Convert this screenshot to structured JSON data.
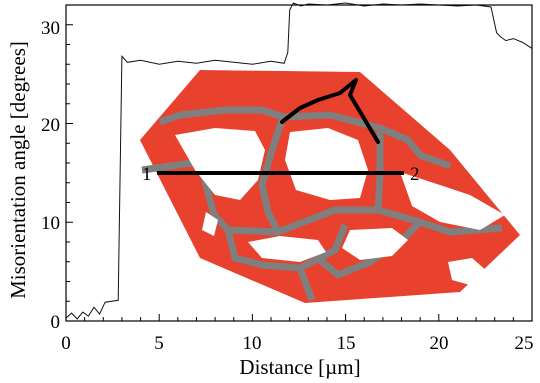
{
  "chart_data": {
    "type": "line",
    "xlabel": "Distance [µm]",
    "ylabel": "Misorientation angle [degrees]",
    "xlim": [
      0,
      25
    ],
    "ylim": [
      0,
      32
    ],
    "xticks": [
      "0",
      "5",
      "10",
      "15",
      "20",
      "25"
    ],
    "yticks": [
      "0",
      "10",
      "20",
      "30"
    ],
    "grid": false,
    "series": [
      {
        "x": [
          0,
          0.3,
          0.6,
          0.9,
          1.2,
          1.5,
          1.8,
          2.1,
          2.8,
          3.0,
          3.3,
          4,
          5,
          6,
          7,
          8,
          9,
          10,
          11,
          11.7,
          11.9,
          12.0,
          12.2,
          12.6,
          13,
          14,
          15,
          16,
          17,
          18,
          19,
          20,
          21,
          22,
          22.8,
          23.1,
          23.3,
          23.6,
          24,
          24.5,
          25
        ],
        "y": [
          0.3,
          0.8,
          0.2,
          0.9,
          0.5,
          1.4,
          0.7,
          1.9,
          2.1,
          26.8,
          26.2,
          26.4,
          26.0,
          26.3,
          26.1,
          26.4,
          26.2,
          26.0,
          26.3,
          26.1,
          27.2,
          31.5,
          32.2,
          31.9,
          32.1,
          32.0,
          32.2,
          31.9,
          32.1,
          32.0,
          32.1,
          32.0,
          31.9,
          32.0,
          31.8,
          29.2,
          28.8,
          28.4,
          28.6,
          28.2,
          27.6
        ]
      }
    ],
    "map_inset": {
      "profile_line_labels": [
        "1",
        "2"
      ],
      "colors": {
        "grain": "#e8412e",
        "boundary": "#7f7f7f",
        "background": "#ffffff",
        "profile_line": "#000000",
        "highlight": "#5fb8d6"
      }
    }
  }
}
